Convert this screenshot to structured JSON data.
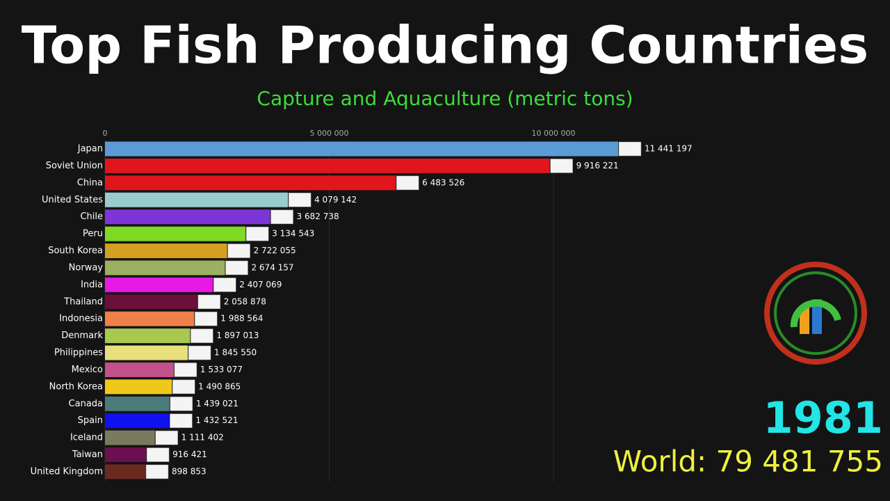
{
  "chart_data": {
    "type": "bar",
    "orientation": "horizontal",
    "title": "Top Fish Producing Countries",
    "subtitle": "Capture and Aquaculture (metric tons)",
    "categories": [
      "Japan",
      "Soviet Union",
      "China",
      "United States",
      "Chile",
      "Peru",
      "South Korea",
      "Norway",
      "India",
      "Thailand",
      "Indonesia",
      "Denmark",
      "Philippines",
      "Mexico",
      "North Korea",
      "Canada",
      "Spain",
      "Iceland",
      "Taiwan",
      "United Kingdom"
    ],
    "values": [
      11441197,
      9916221,
      6483526,
      4079142,
      3682738,
      3134543,
      2722055,
      2674157,
      2407069,
      2058878,
      1988564,
      1897013,
      1845550,
      1533077,
      1490865,
      1439021,
      1432521,
      1111402,
      916421,
      898853
    ],
    "value_labels": [
      "11 441 197",
      "9 916 221",
      "6 483 526",
      "4 079 142",
      "3 682 738",
      "3 134 543",
      "2 722 055",
      "2 674 157",
      "2 407 069",
      "2 058 878",
      "1 988 564",
      "1 897 013",
      "1 845 550",
      "1 533 077",
      "1 490 865",
      "1 439 021",
      "1 432 521",
      "1 111 402",
      "916 421",
      "898 853"
    ],
    "colors": [
      "#5b9bd5",
      "#e0161c",
      "#e0161c",
      "#99cccc",
      "#7d35d8",
      "#80d925",
      "#d4a020",
      "#9bb060",
      "#e619e6",
      "#6b0f3b",
      "#f0804a",
      "#a8c850",
      "#e8e07a",
      "#c2508a",
      "#f0c818",
      "#4a7a7a",
      "#1010f0",
      "#7a7a60",
      "#6b0f50",
      "#6b2a20"
    ],
    "xlim": [
      0,
      12000000
    ],
    "xticks": [
      0,
      {
        "value": 5000000,
        "label": "5 000 000"
      },
      {
        "value": 10000000,
        "label": "10 000 000"
      }
    ],
    "grid": true,
    "year": "1981",
    "world_label": "World: 79 481 755"
  }
}
